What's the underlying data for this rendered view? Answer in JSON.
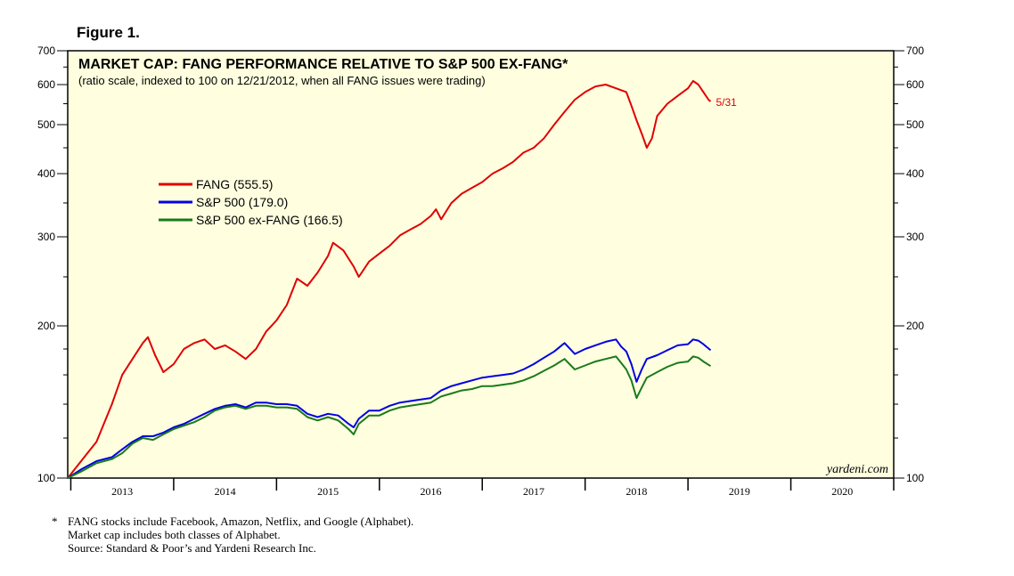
{
  "figure_label": "Figure 1.",
  "chart_data": {
    "type": "line",
    "title": "MARKET CAP: FANG PERFORMANCE RELATIVE TO S&P 500 EX-FANG*",
    "subtitle": "(ratio scale, indexed to 100 on 12/21/2012, when all FANG issues were trading)",
    "y_scale": "log",
    "ylim": [
      100,
      700
    ],
    "y_ticks": [
      100,
      200,
      300,
      400,
      500,
      600,
      700
    ],
    "y_tick_labels": [
      "100",
      "200",
      "300",
      "400",
      "500",
      "600",
      "700"
    ],
    "xlim": [
      2012.97,
      2021.0
    ],
    "x_year_labels": [
      "2013",
      "2014",
      "2015",
      "2016",
      "2017",
      "2018",
      "2019",
      "2020"
    ],
    "grid": false,
    "legend_position": "upper-left",
    "watermark": "yardeni.com",
    "end_annotation": "5/31",
    "series": [
      {
        "name": "FANG (555.5)",
        "color": "#e00000",
        "points": [
          [
            2012.97,
            100
          ],
          [
            2013.1,
            108
          ],
          [
            2013.25,
            118
          ],
          [
            2013.4,
            140
          ],
          [
            2013.5,
            160
          ],
          [
            2013.6,
            172
          ],
          [
            2013.7,
            185
          ],
          [
            2013.75,
            190
          ],
          [
            2013.82,
            175
          ],
          [
            2013.9,
            162
          ],
          [
            2014.0,
            168
          ],
          [
            2014.1,
            180
          ],
          [
            2014.2,
            185
          ],
          [
            2014.3,
            188
          ],
          [
            2014.4,
            180
          ],
          [
            2014.5,
            183
          ],
          [
            2014.6,
            178
          ],
          [
            2014.7,
            172
          ],
          [
            2014.8,
            180
          ],
          [
            2014.9,
            195
          ],
          [
            2015.0,
            205
          ],
          [
            2015.1,
            220
          ],
          [
            2015.2,
            248
          ],
          [
            2015.3,
            240
          ],
          [
            2015.4,
            255
          ],
          [
            2015.5,
            275
          ],
          [
            2015.55,
            292
          ],
          [
            2015.65,
            282
          ],
          [
            2015.75,
            262
          ],
          [
            2015.8,
            250
          ],
          [
            2015.9,
            268
          ],
          [
            2016.0,
            278
          ],
          [
            2016.1,
            288
          ],
          [
            2016.2,
            302
          ],
          [
            2016.3,
            310
          ],
          [
            2016.4,
            318
          ],
          [
            2016.5,
            330
          ],
          [
            2016.55,
            340
          ],
          [
            2016.6,
            325
          ],
          [
            2016.7,
            350
          ],
          [
            2016.8,
            365
          ],
          [
            2016.9,
            375
          ],
          [
            2017.0,
            385
          ],
          [
            2017.1,
            400
          ],
          [
            2017.2,
            410
          ],
          [
            2017.3,
            422
          ],
          [
            2017.4,
            440
          ],
          [
            2017.5,
            450
          ],
          [
            2017.6,
            470
          ],
          [
            2017.7,
            500
          ],
          [
            2017.8,
            530
          ],
          [
            2017.9,
            560
          ],
          [
            2018.0,
            580
          ],
          [
            2018.1,
            595
          ],
          [
            2018.2,
            600
          ],
          [
            2018.3,
            590
          ],
          [
            2018.4,
            580
          ],
          [
            2018.45,
            545
          ],
          [
            2018.5,
            510
          ],
          [
            2018.55,
            480
          ],
          [
            2018.6,
            450
          ],
          [
            2018.65,
            470
          ],
          [
            2018.7,
            520
          ],
          [
            2018.8,
            550
          ],
          [
            2018.9,
            570
          ],
          [
            2019.0,
            590
          ],
          [
            2019.05,
            610
          ],
          [
            2019.1,
            600
          ],
          [
            2019.15,
            580
          ],
          [
            2019.2,
            560
          ],
          [
            2019.22,
            555.5
          ]
        ]
      },
      {
        "name": "S&P 500 (179.0)",
        "color": "#0000e0",
        "points": [
          [
            2012.97,
            100
          ],
          [
            2013.1,
            104
          ],
          [
            2013.25,
            108
          ],
          [
            2013.4,
            110
          ],
          [
            2013.5,
            114
          ],
          [
            2013.6,
            118
          ],
          [
            2013.7,
            121
          ],
          [
            2013.8,
            121
          ],
          [
            2013.9,
            123
          ],
          [
            2014.0,
            126
          ],
          [
            2014.1,
            128
          ],
          [
            2014.2,
            131
          ],
          [
            2014.3,
            134
          ],
          [
            2014.4,
            137
          ],
          [
            2014.5,
            139
          ],
          [
            2014.6,
            140
          ],
          [
            2014.7,
            138
          ],
          [
            2014.8,
            141
          ],
          [
            2014.9,
            141
          ],
          [
            2015.0,
            140
          ],
          [
            2015.1,
            140
          ],
          [
            2015.2,
            139
          ],
          [
            2015.3,
            134
          ],
          [
            2015.4,
            132
          ],
          [
            2015.5,
            134
          ],
          [
            2015.6,
            133
          ],
          [
            2015.7,
            128
          ],
          [
            2015.75,
            126
          ],
          [
            2015.8,
            131
          ],
          [
            2015.9,
            136
          ],
          [
            2016.0,
            136
          ],
          [
            2016.1,
            139
          ],
          [
            2016.2,
            141
          ],
          [
            2016.3,
            142
          ],
          [
            2016.4,
            143
          ],
          [
            2016.5,
            144
          ],
          [
            2016.6,
            149
          ],
          [
            2016.7,
            152
          ],
          [
            2016.8,
            154
          ],
          [
            2016.9,
            156
          ],
          [
            2017.0,
            158
          ],
          [
            2017.1,
            159
          ],
          [
            2017.2,
            160
          ],
          [
            2017.3,
            161
          ],
          [
            2017.4,
            164
          ],
          [
            2017.5,
            168
          ],
          [
            2017.6,
            173
          ],
          [
            2017.7,
            178
          ],
          [
            2017.8,
            185
          ],
          [
            2017.9,
            176
          ],
          [
            2018.0,
            180
          ],
          [
            2018.1,
            183
          ],
          [
            2018.2,
            186
          ],
          [
            2018.3,
            188
          ],
          [
            2018.35,
            182
          ],
          [
            2018.4,
            178
          ],
          [
            2018.45,
            168
          ],
          [
            2018.5,
            155
          ],
          [
            2018.55,
            164
          ],
          [
            2018.6,
            172
          ],
          [
            2018.7,
            175
          ],
          [
            2018.8,
            179
          ],
          [
            2018.9,
            183
          ],
          [
            2019.0,
            184
          ],
          [
            2019.05,
            188
          ],
          [
            2019.1,
            187
          ],
          [
            2019.15,
            184
          ],
          [
            2019.22,
            179.0
          ]
        ]
      },
      {
        "name": "S&P 500 ex-FANG (166.5)",
        "color": "#1a7a1a",
        "points": [
          [
            2012.97,
            100
          ],
          [
            2013.1,
            103
          ],
          [
            2013.25,
            107
          ],
          [
            2013.4,
            109
          ],
          [
            2013.5,
            112
          ],
          [
            2013.6,
            117
          ],
          [
            2013.7,
            120
          ],
          [
            2013.8,
            119
          ],
          [
            2013.9,
            122
          ],
          [
            2014.0,
            125
          ],
          [
            2014.1,
            127
          ],
          [
            2014.2,
            129
          ],
          [
            2014.3,
            132
          ],
          [
            2014.4,
            136
          ],
          [
            2014.5,
            138
          ],
          [
            2014.6,
            139
          ],
          [
            2014.7,
            137
          ],
          [
            2014.8,
            139
          ],
          [
            2014.9,
            139
          ],
          [
            2015.0,
            138
          ],
          [
            2015.1,
            138
          ],
          [
            2015.2,
            137
          ],
          [
            2015.3,
            132
          ],
          [
            2015.4,
            130
          ],
          [
            2015.5,
            132
          ],
          [
            2015.6,
            130
          ],
          [
            2015.7,
            125
          ],
          [
            2015.75,
            122
          ],
          [
            2015.8,
            128
          ],
          [
            2015.9,
            133
          ],
          [
            2016.0,
            133
          ],
          [
            2016.1,
            136
          ],
          [
            2016.2,
            138
          ],
          [
            2016.3,
            139
          ],
          [
            2016.4,
            140
          ],
          [
            2016.5,
            141
          ],
          [
            2016.6,
            145
          ],
          [
            2016.7,
            147
          ],
          [
            2016.8,
            149
          ],
          [
            2016.9,
            150
          ],
          [
            2017.0,
            152
          ],
          [
            2017.1,
            152
          ],
          [
            2017.2,
            153
          ],
          [
            2017.3,
            154
          ],
          [
            2017.4,
            156
          ],
          [
            2017.5,
            159
          ],
          [
            2017.6,
            163
          ],
          [
            2017.7,
            167
          ],
          [
            2017.8,
            172
          ],
          [
            2017.9,
            164
          ],
          [
            2018.0,
            167
          ],
          [
            2018.1,
            170
          ],
          [
            2018.2,
            172
          ],
          [
            2018.3,
            174
          ],
          [
            2018.35,
            169
          ],
          [
            2018.4,
            164
          ],
          [
            2018.45,
            156
          ],
          [
            2018.5,
            144
          ],
          [
            2018.55,
            151
          ],
          [
            2018.6,
            158
          ],
          [
            2018.7,
            162
          ],
          [
            2018.8,
            166
          ],
          [
            2018.9,
            169
          ],
          [
            2019.0,
            170
          ],
          [
            2019.05,
            174
          ],
          [
            2019.1,
            173
          ],
          [
            2019.15,
            170
          ],
          [
            2019.22,
            166.5
          ]
        ]
      }
    ]
  },
  "footnote": {
    "marker": "*",
    "lines": [
      "FANG stocks include Facebook, Amazon, Netflix, and Google (Alphabet).",
      "Market cap includes both classes of Alphabet.",
      "Source: Standard & Poor’s and Yardeni Research Inc."
    ]
  }
}
